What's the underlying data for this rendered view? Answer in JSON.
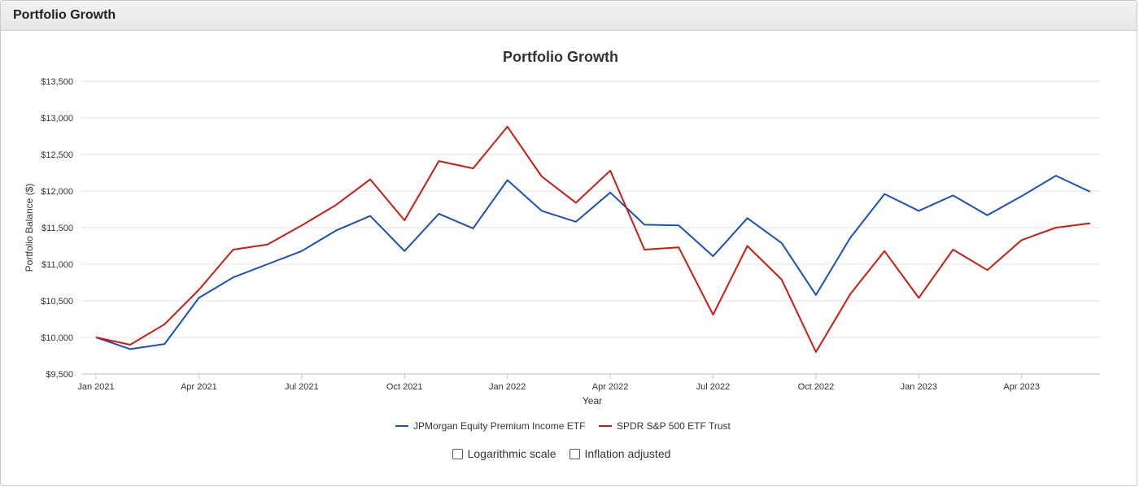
{
  "panel": {
    "title": "Portfolio Growth"
  },
  "options": {
    "log_label": "Logarithmic scale",
    "inflation_label": "Inflation adjusted"
  },
  "chart_data": {
    "type": "line",
    "title": "Portfolio Growth",
    "xlabel": "Year",
    "ylabel": "Portfolio Balance ($)",
    "ylim": [
      9500,
      13500
    ],
    "yticks": [
      9500,
      10000,
      10500,
      11000,
      11500,
      12000,
      12500,
      13000,
      13500
    ],
    "ytick_labels": [
      "$9,500",
      "$10,000",
      "$10,500",
      "$11,000",
      "$11,500",
      "$12,000",
      "$12,500",
      "$13,000",
      "$13,500"
    ],
    "x": [
      "2021-01",
      "2021-02",
      "2021-03",
      "2021-04",
      "2021-05",
      "2021-06",
      "2021-07",
      "2021-08",
      "2021-09",
      "2021-10",
      "2021-11",
      "2021-12",
      "2022-01",
      "2022-02",
      "2022-03",
      "2022-04",
      "2022-05",
      "2022-06",
      "2022-07",
      "2022-08",
      "2022-09",
      "2022-10",
      "2022-11",
      "2022-12",
      "2023-01",
      "2023-02",
      "2023-03",
      "2023-04",
      "2023-05",
      "2023-06"
    ],
    "xtick_labels": [
      "Jan 2021",
      "Apr 2021",
      "Jul 2021",
      "Oct 2021",
      "Jan 2022",
      "Apr 2022",
      "Jul 2022",
      "Oct 2022",
      "Jan 2023",
      "Apr 2023"
    ],
    "xtick_positions": [
      0,
      3,
      6,
      9,
      12,
      15,
      18,
      21,
      24,
      27
    ],
    "grid": true,
    "legend_position": "bottom",
    "series": [
      {
        "name": "JPMorgan Equity Premium Income ETF",
        "color": "#1a4fc0",
        "values": [
          10000,
          9840,
          9910,
          10540,
          10820,
          11000,
          11180,
          11460,
          11660,
          11180,
          11690,
          11490,
          12150,
          11730,
          11580,
          11980,
          11540,
          11530,
          11110,
          11630,
          11290,
          10580,
          11360,
          11960,
          11730,
          11940,
          11670,
          11930,
          12210,
          11990
        ]
      },
      {
        "name": "SPDR S&P 500 ETF Trust",
        "color": "#d01a10",
        "values": [
          10000,
          9900,
          10180,
          10650,
          11200,
          11270,
          11530,
          11810,
          12160,
          11600,
          12410,
          12310,
          12880,
          12200,
          11840,
          12280,
          11200,
          11230,
          10310,
          11250,
          10790,
          9800,
          10590,
          11180,
          10540,
          11200,
          10920,
          11330,
          11500,
          11560
        ]
      }
    ]
  }
}
